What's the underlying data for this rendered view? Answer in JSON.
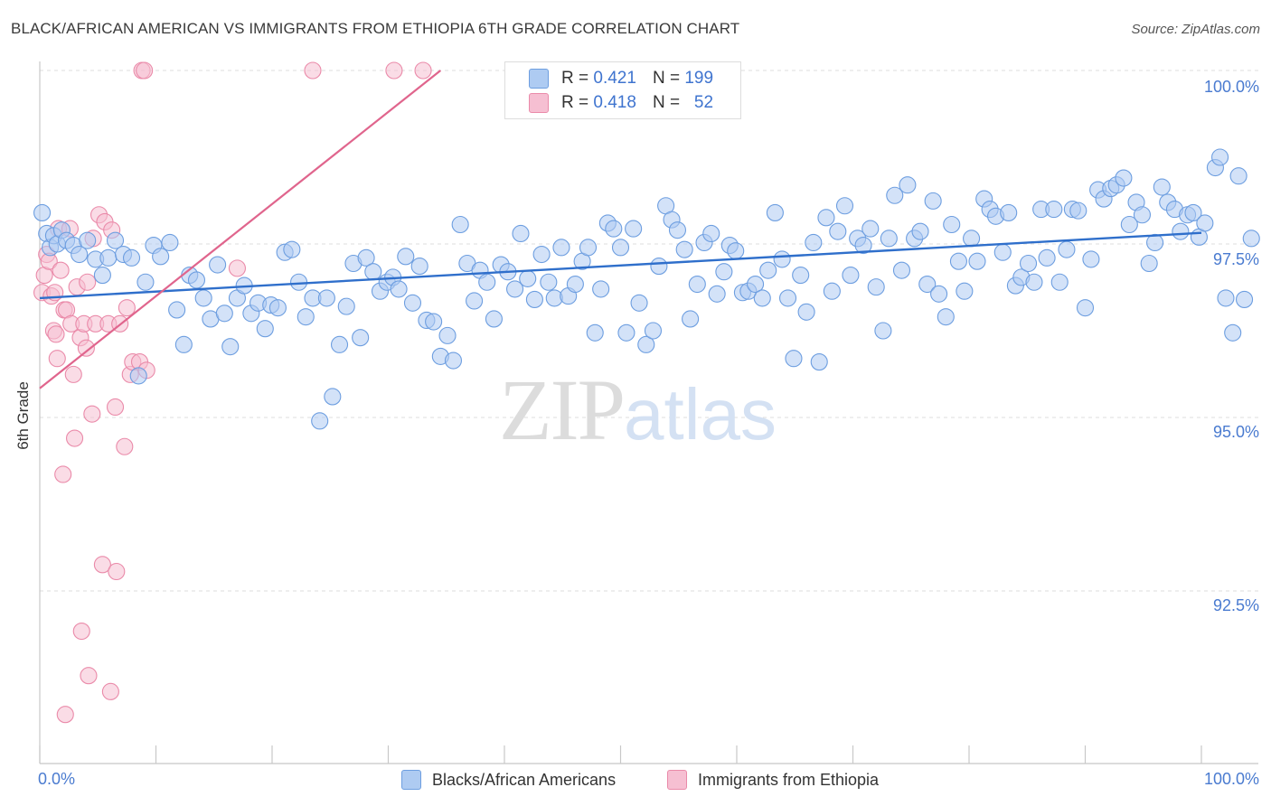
{
  "header": {
    "title": "BLACK/AFRICAN AMERICAN VS IMMIGRANTS FROM ETHIOPIA 6TH GRADE CORRELATION CHART",
    "source": "Source: ZipAtlas.com"
  },
  "watermark": {
    "zip": "ZIP",
    "atlas": "atlas"
  },
  "legend_top": {
    "rows": [
      {
        "r_label": "R =",
        "r_value": "0.421",
        "n_label": "N =",
        "n_value": "199"
      },
      {
        "r_label": "R =",
        "r_value": "0.418",
        "n_label": "N =",
        "n_value": "52"
      }
    ]
  },
  "colors": {
    "blue_fill": "#aecbf2",
    "blue_stroke": "#6d9ee0",
    "blue_line": "#2f6fcb",
    "pink_fill": "#f6bfd2",
    "pink_stroke": "#ea8aa9",
    "pink_line": "#e0658d",
    "grid": "#dcdcdc",
    "axis_text": "#4a7bd0"
  },
  "chart_data": {
    "type": "scatter",
    "title": "BLACK/AFRICAN AMERICAN VS IMMIGRANTS FROM ETHIOPIA 6TH GRADE CORRELATION CHART",
    "xlabel": "",
    "ylabel": "6th Grade",
    "xlim": [
      0,
      100
    ],
    "ylim": [
      90.0,
      100.3
    ],
    "x_tick_labels": [
      "0.0%",
      "100.0%"
    ],
    "y_ticks": [
      92.5,
      95.0,
      97.5,
      100.0
    ],
    "y_tick_labels": [
      "92.5%",
      "95.0%",
      "97.5%",
      "100.0%"
    ],
    "grid": "horizontal dashed",
    "legend": "bottom",
    "series": [
      {
        "name": "Blacks/African Americans",
        "color": "#aecbf2",
        "r": 0.421,
        "n": 199,
        "trend": {
          "x": [
            0,
            100
          ],
          "y": [
            96.72,
            97.66
          ]
        },
        "points": [
          [
            0.2,
            97.95
          ],
          [
            0.6,
            97.65
          ],
          [
            0.9,
            97.45
          ],
          [
            1.2,
            97.62
          ],
          [
            1.5,
            97.5
          ],
          [
            1.9,
            97.7
          ],
          [
            2.3,
            97.55
          ],
          [
            2.9,
            97.48
          ],
          [
            3.4,
            97.35
          ],
          [
            4.1,
            97.55
          ],
          [
            4.8,
            97.28
          ],
          [
            5.4,
            97.05
          ],
          [
            5.9,
            97.3
          ],
          [
            6.5,
            97.55
          ],
          [
            7.2,
            97.35
          ],
          [
            7.9,
            97.3
          ],
          [
            8.5,
            95.6
          ],
          [
            9.1,
            96.95
          ],
          [
            9.8,
            97.48
          ],
          [
            10.4,
            97.32
          ],
          [
            11.2,
            97.52
          ],
          [
            11.8,
            96.55
          ],
          [
            12.4,
            96.05
          ],
          [
            12.9,
            97.05
          ],
          [
            13.5,
            96.98
          ],
          [
            14.1,
            96.72
          ],
          [
            14.7,
            96.42
          ],
          [
            15.3,
            97.2
          ],
          [
            15.9,
            96.5
          ],
          [
            16.4,
            96.02
          ],
          [
            17.0,
            96.72
          ],
          [
            17.6,
            96.9
          ],
          [
            18.2,
            96.5
          ],
          [
            18.8,
            96.65
          ],
          [
            19.4,
            96.28
          ],
          [
            19.9,
            96.62
          ],
          [
            20.5,
            96.58
          ],
          [
            21.1,
            97.38
          ],
          [
            21.7,
            97.42
          ],
          [
            22.3,
            96.95
          ],
          [
            22.9,
            96.45
          ],
          [
            23.5,
            96.72
          ],
          [
            24.1,
            94.95
          ],
          [
            24.7,
            96.72
          ],
          [
            25.2,
            95.3
          ],
          [
            25.8,
            96.05
          ],
          [
            26.4,
            96.6
          ],
          [
            27.0,
            97.22
          ],
          [
            27.6,
            96.15
          ],
          [
            28.1,
            97.3
          ],
          [
            28.7,
            97.1
          ],
          [
            29.3,
            96.82
          ],
          [
            29.9,
            96.95
          ],
          [
            30.4,
            97.02
          ],
          [
            30.9,
            96.85
          ],
          [
            31.5,
            97.32
          ],
          [
            32.1,
            96.65
          ],
          [
            32.7,
            97.18
          ],
          [
            33.3,
            96.4
          ],
          [
            33.9,
            96.38
          ],
          [
            34.5,
            95.88
          ],
          [
            35.1,
            96.18
          ],
          [
            35.6,
            95.82
          ],
          [
            36.2,
            97.78
          ],
          [
            36.8,
            97.22
          ],
          [
            37.4,
            96.68
          ],
          [
            37.9,
            97.12
          ],
          [
            38.5,
            96.95
          ],
          [
            39.1,
            96.42
          ],
          [
            39.7,
            97.2
          ],
          [
            40.3,
            97.1
          ],
          [
            40.9,
            96.85
          ],
          [
            41.4,
            97.65
          ],
          [
            42.0,
            97.0
          ],
          [
            42.6,
            96.7
          ],
          [
            43.2,
            97.35
          ],
          [
            43.8,
            96.95
          ],
          [
            44.3,
            96.72
          ],
          [
            44.9,
            97.45
          ],
          [
            45.5,
            96.75
          ],
          [
            46.1,
            96.92
          ],
          [
            46.7,
            97.25
          ],
          [
            47.2,
            97.45
          ],
          [
            47.8,
            96.22
          ],
          [
            48.3,
            96.85
          ],
          [
            48.9,
            97.8
          ],
          [
            49.4,
            97.72
          ],
          [
            50.0,
            97.45
          ],
          [
            50.5,
            96.22
          ],
          [
            51.1,
            97.72
          ],
          [
            51.6,
            96.65
          ],
          [
            52.2,
            96.05
          ],
          [
            52.8,
            96.25
          ],
          [
            53.3,
            97.18
          ],
          [
            53.9,
            98.05
          ],
          [
            54.4,
            97.85
          ],
          [
            54.9,
            97.7
          ],
          [
            55.5,
            97.42
          ],
          [
            56.0,
            96.42
          ],
          [
            56.6,
            96.92
          ],
          [
            57.2,
            97.52
          ],
          [
            57.8,
            97.65
          ],
          [
            58.3,
            96.78
          ],
          [
            58.9,
            97.1
          ],
          [
            59.4,
            97.48
          ],
          [
            59.9,
            97.4
          ],
          [
            60.5,
            96.8
          ],
          [
            61.0,
            96.82
          ],
          [
            61.6,
            96.92
          ],
          [
            62.2,
            96.72
          ],
          [
            62.7,
            97.12
          ],
          [
            63.3,
            97.95
          ],
          [
            63.9,
            97.28
          ],
          [
            64.4,
            96.72
          ],
          [
            64.9,
            95.85
          ],
          [
            65.5,
            97.05
          ],
          [
            66.0,
            96.52
          ],
          [
            66.6,
            97.52
          ],
          [
            67.1,
            95.8
          ],
          [
            67.7,
            97.88
          ],
          [
            68.2,
            96.82
          ],
          [
            68.7,
            97.68
          ],
          [
            69.3,
            98.05
          ],
          [
            69.8,
            97.05
          ],
          [
            70.4,
            97.58
          ],
          [
            70.9,
            97.48
          ],
          [
            71.5,
            97.72
          ],
          [
            72.0,
            96.88
          ],
          [
            72.6,
            96.25
          ],
          [
            73.1,
            97.58
          ],
          [
            73.6,
            98.2
          ],
          [
            74.2,
            97.12
          ],
          [
            74.7,
            98.35
          ],
          [
            75.3,
            97.58
          ],
          [
            75.8,
            97.68
          ],
          [
            76.4,
            96.92
          ],
          [
            76.9,
            98.12
          ],
          [
            77.4,
            96.78
          ],
          [
            78.0,
            96.45
          ],
          [
            78.5,
            97.78
          ],
          [
            79.1,
            97.25
          ],
          [
            79.6,
            96.82
          ],
          [
            80.2,
            97.58
          ],
          [
            80.7,
            97.25
          ],
          [
            81.3,
            98.15
          ],
          [
            81.8,
            98.0
          ],
          [
            82.3,
            97.9
          ],
          [
            82.9,
            97.38
          ],
          [
            83.4,
            97.95
          ],
          [
            84.0,
            96.9
          ],
          [
            84.5,
            97.02
          ],
          [
            85.1,
            97.22
          ],
          [
            85.6,
            96.95
          ],
          [
            86.2,
            98.0
          ],
          [
            86.7,
            97.3
          ],
          [
            87.3,
            98.0
          ],
          [
            87.8,
            96.95
          ],
          [
            88.4,
            97.42
          ],
          [
            88.9,
            98.0
          ],
          [
            89.4,
            97.98
          ],
          [
            90.0,
            96.58
          ],
          [
            90.5,
            97.28
          ],
          [
            91.1,
            98.28
          ],
          [
            91.6,
            98.15
          ],
          [
            92.2,
            98.3
          ],
          [
            92.7,
            98.35
          ],
          [
            93.3,
            98.45
          ],
          [
            93.8,
            97.78
          ],
          [
            94.4,
            98.1
          ],
          [
            94.9,
            97.92
          ],
          [
            95.5,
            97.22
          ],
          [
            96.0,
            97.52
          ],
          [
            96.6,
            98.32
          ],
          [
            97.1,
            98.1
          ],
          [
            97.7,
            98.0
          ],
          [
            98.2,
            97.68
          ],
          [
            98.8,
            97.92
          ],
          [
            99.3,
            97.95
          ],
          [
            99.8,
            97.6
          ],
          [
            100.3,
            97.8
          ],
          [
            101.2,
            98.6
          ],
          [
            101.6,
            98.75
          ],
          [
            102.1,
            96.72
          ],
          [
            102.7,
            96.22
          ],
          [
            103.2,
            98.48
          ],
          [
            103.7,
            96.7
          ],
          [
            104.3,
            97.58
          ]
        ]
      },
      {
        "name": "Immigrants from Ethiopia",
        "color": "#f6bfd2",
        "r": 0.418,
        "n": 52,
        "trend": {
          "x": [
            0,
            34.5
          ],
          "y": [
            95.42,
            100.0
          ]
        },
        "points": [
          [
            0.2,
            96.8
          ],
          [
            0.4,
            97.05
          ],
          [
            0.6,
            97.35
          ],
          [
            0.8,
            97.25
          ],
          [
            1.0,
            96.75
          ],
          [
            1.2,
            96.25
          ],
          [
            1.3,
            96.8
          ],
          [
            1.4,
            96.2
          ],
          [
            1.5,
            95.85
          ],
          [
            1.6,
            97.72
          ],
          [
            1.8,
            97.12
          ],
          [
            2.0,
            94.18
          ],
          [
            2.1,
            96.55
          ],
          [
            2.2,
            90.72
          ],
          [
            2.3,
            96.55
          ],
          [
            2.6,
            97.72
          ],
          [
            2.7,
            96.35
          ],
          [
            2.9,
            95.62
          ],
          [
            3.0,
            94.7
          ],
          [
            3.2,
            96.88
          ],
          [
            3.5,
            96.15
          ],
          [
            3.6,
            91.92
          ],
          [
            3.8,
            96.35
          ],
          [
            4.0,
            96.0
          ],
          [
            4.1,
            96.95
          ],
          [
            4.2,
            91.28
          ],
          [
            4.5,
            95.05
          ],
          [
            4.6,
            97.58
          ],
          [
            4.8,
            96.35
          ],
          [
            5.1,
            97.92
          ],
          [
            5.4,
            92.88
          ],
          [
            5.6,
            97.82
          ],
          [
            5.9,
            96.35
          ],
          [
            6.1,
            91.05
          ],
          [
            6.2,
            97.7
          ],
          [
            6.5,
            95.15
          ],
          [
            6.6,
            92.78
          ],
          [
            6.9,
            96.35
          ],
          [
            7.3,
            94.58
          ],
          [
            7.5,
            96.58
          ],
          [
            7.8,
            95.62
          ],
          [
            8.0,
            95.8
          ],
          [
            8.6,
            95.8
          ],
          [
            8.8,
            100.0
          ],
          [
            9.0,
            100.0
          ],
          [
            9.2,
            95.68
          ],
          [
            17.0,
            97.15
          ],
          [
            23.5,
            100.0
          ],
          [
            30.5,
            100.0
          ],
          [
            33.0,
            100.0
          ]
        ]
      }
    ]
  },
  "y_axis": {
    "label": "6th Grade",
    "ticks": [
      {
        "value": 100.0,
        "label": "100.0%"
      },
      {
        "value": 97.5,
        "label": "97.5%"
      },
      {
        "value": 95.0,
        "label": "95.0%"
      },
      {
        "value": 92.5,
        "label": "92.5%"
      }
    ]
  },
  "x_axis": {
    "ticks": [
      {
        "value": 0,
        "label": "0.0%"
      },
      {
        "value": 100,
        "label": "100.0%"
      }
    ]
  },
  "legend_bottom": {
    "items": [
      {
        "label": "Blacks/African Americans"
      },
      {
        "label": "Immigrants from Ethiopia"
      }
    ]
  }
}
